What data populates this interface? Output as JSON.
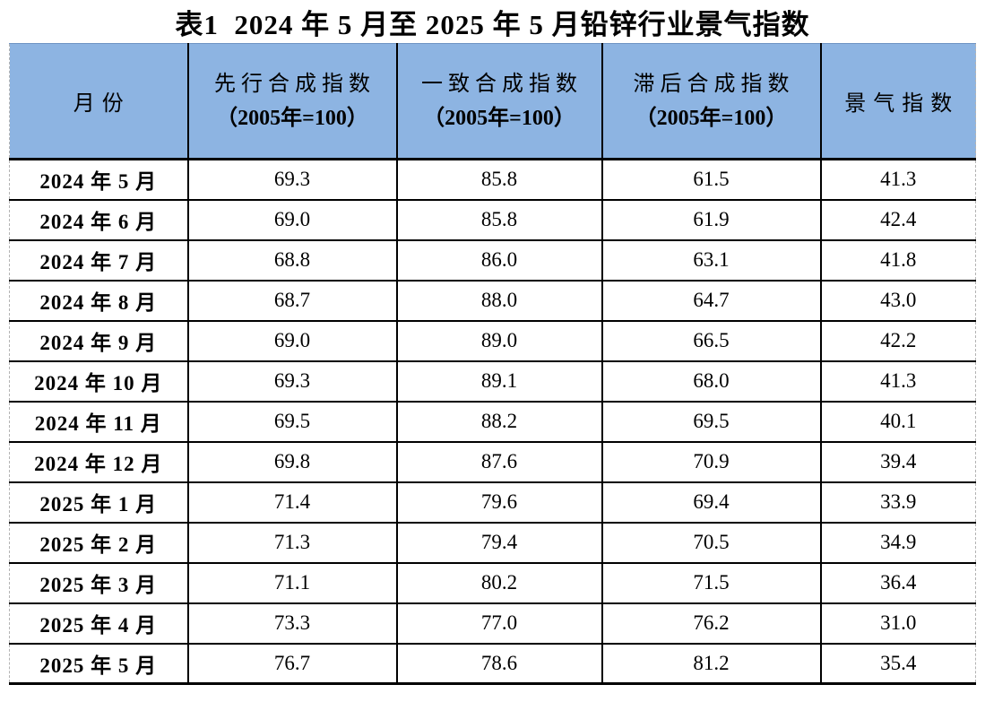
{
  "title": "表1  2024 年 5 月至 2025 年 5 月铅锌行业景气指数",
  "table": {
    "header": {
      "month": "月份",
      "leading_line1": "先行合成指数",
      "coincident_line1": "一致合成指数",
      "lagging_line1": "滞后合成指数",
      "base_note": "（2005年=100）",
      "prosperity": "景气指数"
    },
    "rows": [
      {
        "month": "2024 年 5 月",
        "leading": "69.3",
        "coincident": "85.8",
        "lagging": "61.5",
        "prosperity": "41.3"
      },
      {
        "month": "2024 年 6 月",
        "leading": "69.0",
        "coincident": "85.8",
        "lagging": "61.9",
        "prosperity": "42.4"
      },
      {
        "month": "2024 年 7 月",
        "leading": "68.8",
        "coincident": "86.0",
        "lagging": "63.1",
        "prosperity": "41.8"
      },
      {
        "month": "2024 年 8 月",
        "leading": "68.7",
        "coincident": "88.0",
        "lagging": "64.7",
        "prosperity": "43.0"
      },
      {
        "month": "2024 年 9 月",
        "leading": "69.0",
        "coincident": "89.0",
        "lagging": "66.5",
        "prosperity": "42.2"
      },
      {
        "month": "2024 年 10 月",
        "leading": "69.3",
        "coincident": "89.1",
        "lagging": "68.0",
        "prosperity": "41.3"
      },
      {
        "month": "2024 年 11 月",
        "leading": "69.5",
        "coincident": "88.2",
        "lagging": "69.5",
        "prosperity": "40.1"
      },
      {
        "month": "2024 年 12 月",
        "leading": "69.8",
        "coincident": "87.6",
        "lagging": "70.9",
        "prosperity": "39.4"
      },
      {
        "month": "2025 年 1 月",
        "leading": "71.4",
        "coincident": "79.6",
        "lagging": "69.4",
        "prosperity": "33.9"
      },
      {
        "month": "2025 年 2 月",
        "leading": "71.3",
        "coincident": "79.4",
        "lagging": "70.5",
        "prosperity": "34.9"
      },
      {
        "month": "2025 年 3 月",
        "leading": "71.1",
        "coincident": "80.2",
        "lagging": "71.5",
        "prosperity": "36.4"
      },
      {
        "month": "2025 年 4 月",
        "leading": "73.3",
        "coincident": "77.0",
        "lagging": "76.2",
        "prosperity": "31.0"
      },
      {
        "month": "2025 年 5 月",
        "leading": "76.7",
        "coincident": "78.6",
        "lagging": "81.2",
        "prosperity": "35.4"
      }
    ]
  },
  "chart_data": {
    "type": "table",
    "title": "表1 2024年5月至2025年5月铅锌行业景气指数",
    "columns": [
      "月份",
      "先行合成指数（2005年=100）",
      "一致合成指数（2005年=100）",
      "滞后合成指数（2005年=100）",
      "景气指数"
    ],
    "categories": [
      "2024年5月",
      "2024年6月",
      "2024年7月",
      "2024年8月",
      "2024年9月",
      "2024年10月",
      "2024年11月",
      "2024年12月",
      "2025年1月",
      "2025年2月",
      "2025年3月",
      "2025年4月",
      "2025年5月"
    ],
    "series": [
      {
        "name": "先行合成指数（2005年=100）",
        "values": [
          69.3,
          69.0,
          68.8,
          68.7,
          69.0,
          69.3,
          69.5,
          69.8,
          71.4,
          71.3,
          71.1,
          73.3,
          76.7
        ]
      },
      {
        "name": "一致合成指数（2005年=100）",
        "values": [
          85.8,
          85.8,
          86.0,
          88.0,
          89.0,
          89.1,
          88.2,
          87.6,
          79.6,
          79.4,
          80.2,
          77.0,
          78.6
        ]
      },
      {
        "name": "滞后合成指数（2005年=100）",
        "values": [
          61.5,
          61.9,
          63.1,
          64.7,
          66.5,
          68.0,
          69.5,
          70.9,
          69.4,
          70.5,
          71.5,
          76.2,
          81.2
        ]
      },
      {
        "name": "景气指数",
        "values": [
          41.3,
          42.4,
          41.8,
          43.0,
          42.2,
          41.3,
          40.1,
          39.4,
          33.9,
          34.9,
          36.4,
          31.0,
          35.4
        ]
      }
    ]
  },
  "colors": {
    "header_bg": "#8DB4E2",
    "grid_border": "#000000",
    "page_edge_dashed": "#B3B3B3",
    "text": "#000000"
  }
}
